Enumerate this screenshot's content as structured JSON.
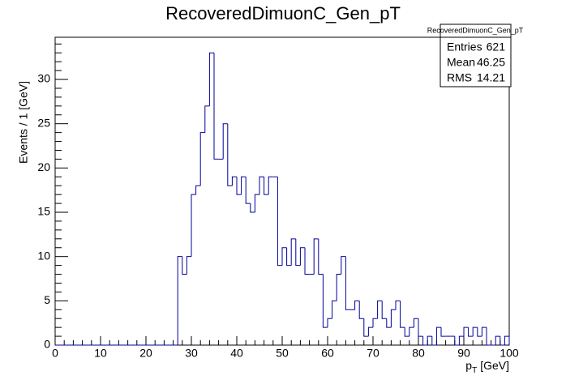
{
  "chart_data": {
    "type": "histogram",
    "title": "RecoveredDimuonC_Gen_pT",
    "xlabel": [
      "p",
      "T",
      "[GeV]"
    ],
    "ylabel": "Events / 1 [GeV]",
    "bins": [
      0,
      1,
      2,
      3,
      4,
      5,
      6,
      7,
      8,
      9,
      10,
      11,
      12,
      13,
      14,
      15,
      16,
      17,
      18,
      19,
      20,
      21,
      22,
      23,
      24,
      25,
      26,
      27,
      28,
      29,
      30,
      31,
      32,
      33,
      34,
      35,
      36,
      37,
      38,
      39,
      40,
      41,
      42,
      43,
      44,
      45,
      46,
      47,
      48,
      49,
      50,
      51,
      52,
      53,
      54,
      55,
      56,
      57,
      58,
      59,
      60,
      61,
      62,
      63,
      64,
      65,
      66,
      67,
      68,
      69,
      70,
      71,
      72,
      73,
      74,
      75,
      76,
      77,
      78,
      79,
      80,
      81,
      82,
      83,
      84,
      85,
      86,
      87,
      88,
      89,
      90,
      91,
      92,
      93,
      94,
      95,
      96,
      97,
      98,
      99,
      100
    ],
    "values": [
      0,
      0,
      0,
      0,
      0,
      0,
      0,
      0,
      0,
      0,
      0,
      0,
      0,
      0,
      0,
      0,
      0,
      0,
      0,
      0,
      0,
      0,
      0,
      0,
      0,
      0,
      0,
      10,
      8,
      10,
      17,
      18,
      24,
      27,
      33,
      21,
      21,
      25,
      18,
      19,
      17,
      19,
      16,
      15,
      17,
      19,
      17,
      19,
      19,
      9,
      11,
      9,
      12,
      9,
      11,
      8,
      8,
      12,
      8,
      2,
      3,
      5,
      8,
      10,
      4,
      4,
      5,
      3,
      1,
      2,
      3,
      5,
      3,
      2,
      4,
      5,
      2,
      1,
      2,
      3,
      1,
      0,
      1,
      0,
      2,
      1,
      1,
      1,
      0,
      1,
      2,
      1,
      2,
      1,
      2,
      0,
      0,
      1,
      0,
      1
    ],
    "color": "#000099",
    "xlim": [
      0,
      100
    ],
    "xticks": [
      0,
      10,
      20,
      30,
      40,
      50,
      60,
      70,
      80,
      90,
      100
    ],
    "ylim": [
      0,
      34.76
    ],
    "yticks": [
      0,
      5,
      10,
      15,
      20,
      25,
      30
    ],
    "stats": {
      "title": "RecoveredDimuonC_Gen_pT",
      "rows": [
        [
          "Entries",
          621
        ],
        [
          "Mean",
          46.25
        ],
        [
          "RMS",
          14.21
        ]
      ]
    }
  }
}
